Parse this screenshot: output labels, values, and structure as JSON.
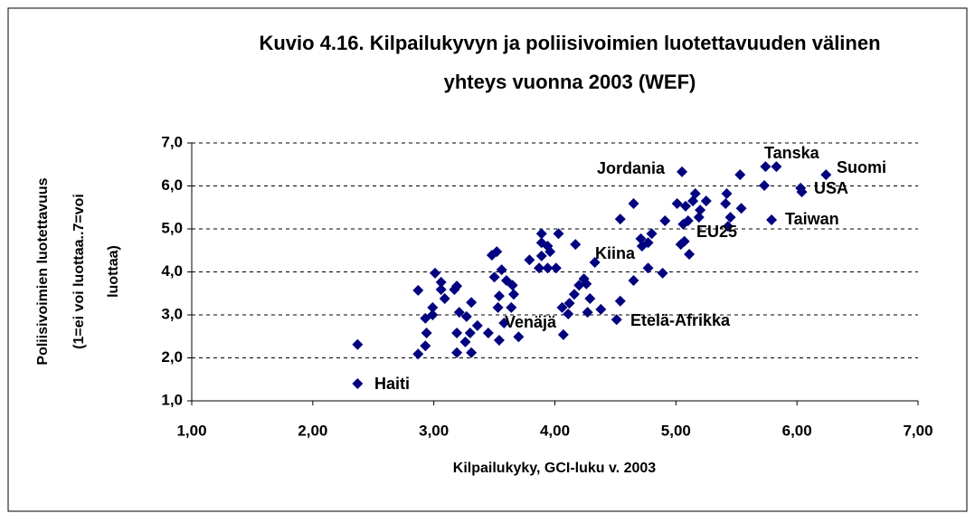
{
  "chart_data": {
    "type": "scatter",
    "title": [
      "Kuvio 4.16. Kilpailukyvyn ja poliisivoimien luotettavuuden välinen",
      "yhteys vuonna 2003 (WEF)"
    ],
    "xlabel": "Kilpailukyky, GCI-luku v. 2003",
    "ylabel": [
      "Poliisivoimien luotettavuus",
      "(1=ei voi luottaa..7=voi",
      "luottaa)"
    ],
    "color": "#000080",
    "grid": true,
    "xlim": [
      1,
      7
    ],
    "ylim": [
      1,
      7
    ],
    "xticks": [
      {
        "value": 1,
        "label": "1,00"
      },
      {
        "value": 2,
        "label": "2,00"
      },
      {
        "value": 3,
        "label": "3,00"
      },
      {
        "value": 4,
        "label": "4,00"
      },
      {
        "value": 5,
        "label": "5,00"
      },
      {
        "value": 6,
        "label": "6,00"
      },
      {
        "value": 7,
        "label": "7,00"
      }
    ],
    "yticks": [
      {
        "value": 1,
        "label": "1,0"
      },
      {
        "value": 2,
        "label": "2,0"
      },
      {
        "value": 3,
        "label": "3,0"
      },
      {
        "value": 4,
        "label": "4,0"
      },
      {
        "value": 5,
        "label": "5,0"
      },
      {
        "value": 6,
        "label": "6,0"
      },
      {
        "value": 7,
        "label": "7,0"
      }
    ],
    "x": [
      2.37,
      2.37,
      2.87,
      3.06,
      3.01,
      3.06,
      3.09,
      2.99,
      2.93,
      2.94,
      2.93,
      2.87,
      2.99,
      3.19,
      3.17,
      3.21,
      3.19,
      3.19,
      3.26,
      3.27,
      3.31,
      3.3,
      3.31,
      3.36,
      3.45,
      3.48,
      3.5,
      3.52,
      3.53,
      3.54,
      3.58,
      3.54,
      3.56,
      3.6,
      3.65,
      3.64,
      3.66,
      3.7,
      3.79,
      3.89,
      3.89,
      3.89,
      3.87,
      3.94,
      3.94,
      3.96,
      4.01,
      4.03,
      4.06,
      4.07,
      4.11,
      4.12,
      4.16,
      4.17,
      4.2,
      4.24,
      4.26,
      4.27,
      4.29,
      4.33,
      4.38,
      4.51,
      4.54,
      4.54,
      4.65,
      4.65,
      4.72,
      4.71,
      4.77,
      4.77,
      4.8,
      4.89,
      4.91,
      5.01,
      5.04,
      5.05,
      5.06,
      5.07,
      5.08,
      5.11,
      5.1,
      5.16,
      5.14,
      5.19,
      5.2,
      5.25,
      5.42,
      5.41,
      5.45,
      5.43,
      5.53,
      5.54,
      5.73,
      5.74,
      5.83,
      5.79,
      6.03,
      6.04,
      6.24
    ],
    "values": [
      1.4,
      2.31,
      3.57,
      3.76,
      3.97,
      3.59,
      3.38,
      3.17,
      2.92,
      2.58,
      2.28,
      2.09,
      3.0,
      3.67,
      3.59,
      3.06,
      2.58,
      2.12,
      2.37,
      2.96,
      3.29,
      2.58,
      2.12,
      2.75,
      2.58,
      4.39,
      3.88,
      4.47,
      3.17,
      3.44,
      2.81,
      2.41,
      4.05,
      3.8,
      3.69,
      3.17,
      3.48,
      2.49,
      4.28,
      4.89,
      4.68,
      4.37,
      4.09,
      4.09,
      4.6,
      4.47,
      4.09,
      4.89,
      3.17,
      2.54,
      3.02,
      3.27,
      3.48,
      4.64,
      3.69,
      3.84,
      3.72,
      3.06,
      3.38,
      4.22,
      3.13,
      2.89,
      5.23,
      3.32,
      5.59,
      3.8,
      4.6,
      4.77,
      4.09,
      4.68,
      4.89,
      3.97,
      5.19,
      5.59,
      4.64,
      6.33,
      5.11,
      4.71,
      5.53,
      4.41,
      5.19,
      5.82,
      5.65,
      5.27,
      5.44,
      5.65,
      5.82,
      5.59,
      5.27,
      5.06,
      6.26,
      5.48,
      6.01,
      6.45,
      6.45,
      5.21,
      5.95,
      5.86,
      6.26
    ],
    "annotations": [
      "Tanska",
      "Suomi",
      "USA",
      "Taiwan",
      "Jordania",
      "EU25",
      "Kiina",
      "Venäjä",
      "Etelä-Afrikka",
      "Haiti"
    ]
  }
}
